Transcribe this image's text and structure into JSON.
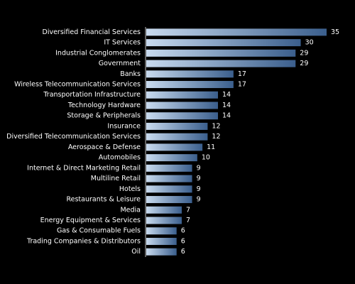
{
  "chart_data": {
    "type": "bar",
    "orientation": "horizontal",
    "categories": [
      "Diversified Financial Services",
      "IT Services",
      "Industrial Conglomerates",
      "Government",
      "Banks",
      "Wireless Telecommunication Services",
      "Transportation Infrastructure",
      "Technology Hardware",
      "Storage & Peripherals",
      "Insurance",
      "Diversified Telecommunication Services",
      "Aerospace & Defense",
      "Automobiles",
      "Internet & Direct Marketing Retail",
      "Multiline Retail",
      "Hotels",
      "Restaurants & Leisure",
      "Media",
      "Energy Equipment & Services",
      "Gas & Consumable Fuels",
      "Trading Companies & Distributors",
      "Oil"
    ],
    "values": [
      35,
      30,
      29,
      29,
      17,
      17,
      14,
      14,
      14,
      12,
      12,
      11,
      10,
      9,
      9,
      9,
      9,
      7,
      7,
      6,
      6,
      6
    ],
    "data_labels": [
      "35",
      "30",
      "29",
      "29",
      "17",
      "17",
      "14",
      "14",
      "14",
      "12",
      "12",
      "11",
      "10",
      "9",
      "9",
      "9",
      "9",
      "7",
      "7",
      "6",
      "6",
      "6"
    ],
    "xlim": [
      0,
      35
    ],
    "grid": false,
    "legend": "none",
    "colors": {
      "background": "#000000",
      "bar_light": "#c9dbef",
      "bar_dark": "#3b5f8d",
      "text": "#ffffff",
      "axis": "#bfbfbf"
    }
  }
}
